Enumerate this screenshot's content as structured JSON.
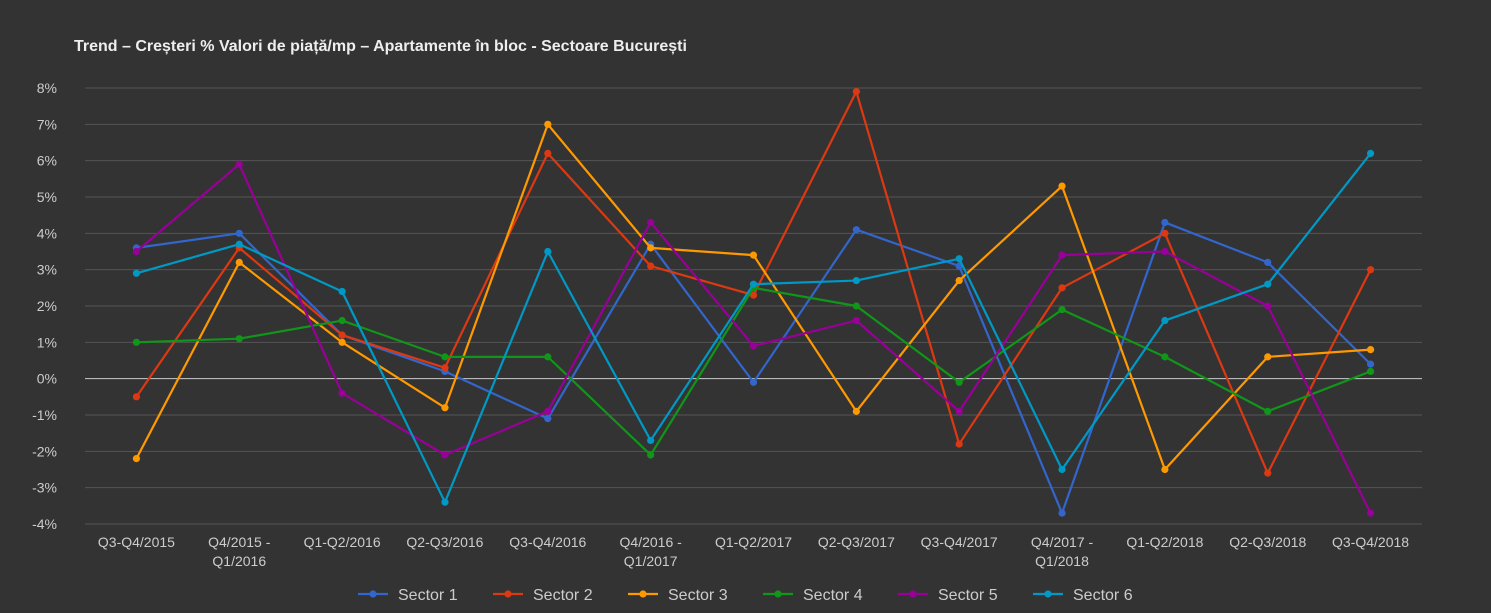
{
  "chart_data": {
    "type": "line",
    "title": "Trend – Creșteri % Valori de piață/mp – Apartamente în bloc - Sectoare București",
    "xlabel": "",
    "ylabel": "",
    "ylim": [
      -4,
      8
    ],
    "ytick_labels": [
      "8%",
      "7%",
      "6%",
      "5%",
      "4%",
      "3%",
      "2%",
      "1%",
      "0%",
      "-1%",
      "-2%",
      "-3%",
      "-4%"
    ],
    "categories": [
      "Q3-Q4/2015",
      "Q4/2015 - Q1/2016",
      "Q1-Q2/2016",
      "Q2-Q3/2016",
      "Q3-Q4/2016",
      "Q4/2016 - Q1/2017",
      "Q1-Q2/2017",
      "Q2-Q3/2017",
      "Q3-Q4/2017",
      "Q4/2017 - Q1/2018",
      "Q1-Q2/2018",
      "Q2-Q3/2018",
      "Q3-Q4/2018"
    ],
    "category_lines": [
      [
        "Q3-Q4/2015"
      ],
      [
        "Q4/2015 -",
        "Q1/2016"
      ],
      [
        "Q1-Q2/2016"
      ],
      [
        "Q2-Q3/2016"
      ],
      [
        "Q3-Q4/2016"
      ],
      [
        "Q4/2016 -",
        "Q1/2017"
      ],
      [
        "Q1-Q2/2017"
      ],
      [
        "Q2-Q3/2017"
      ],
      [
        "Q3-Q4/2017"
      ],
      [
        "Q4/2017 -",
        "Q1/2018"
      ],
      [
        "Q1-Q2/2018"
      ],
      [
        "Q2-Q3/2018"
      ],
      [
        "Q3-Q4/2018"
      ]
    ],
    "series": [
      {
        "name": "Sector 1",
        "color": "#3366cc",
        "values": [
          3.6,
          4.0,
          1.2,
          0.2,
          -1.1,
          3.7,
          -0.1,
          4.1,
          3.1,
          -3.7,
          4.3,
          3.2,
          0.4
        ]
      },
      {
        "name": "Sector 2",
        "color": "#dc3912",
        "values": [
          -0.5,
          3.6,
          1.2,
          0.3,
          6.2,
          3.1,
          2.3,
          7.9,
          -1.8,
          2.5,
          4.0,
          -2.6,
          3.0
        ]
      },
      {
        "name": "Sector 3",
        "color": "#ff9900",
        "values": [
          -2.2,
          3.2,
          1.0,
          -0.8,
          7.0,
          3.6,
          3.4,
          -0.9,
          2.7,
          5.3,
          -2.5,
          0.6,
          0.8
        ]
      },
      {
        "name": "Sector 4",
        "color": "#109618",
        "values": [
          1.0,
          1.1,
          1.6,
          0.6,
          0.6,
          -2.1,
          2.5,
          2.0,
          -0.1,
          1.9,
          0.6,
          -0.9,
          0.2
        ]
      },
      {
        "name": "Sector 5",
        "color": "#990099",
        "values": [
          3.5,
          5.9,
          -0.4,
          -2.1,
          -0.9,
          4.3,
          0.9,
          1.6,
          -0.9,
          3.4,
          3.5,
          2.0,
          -3.7
        ]
      },
      {
        "name": "Sector 6",
        "color": "#0099c6",
        "values": [
          2.9,
          3.7,
          2.4,
          -3.4,
          3.5,
          -1.7,
          2.6,
          2.7,
          3.3,
          -2.5,
          1.6,
          2.6,
          6.2
        ]
      }
    ],
    "grid": true,
    "legend": "bottom"
  },
  "colors": {
    "background": "#333333",
    "grid": "#555555",
    "zero_line": "#cccccc",
    "text": "#cccccc",
    "title": "#eeeeee"
  }
}
